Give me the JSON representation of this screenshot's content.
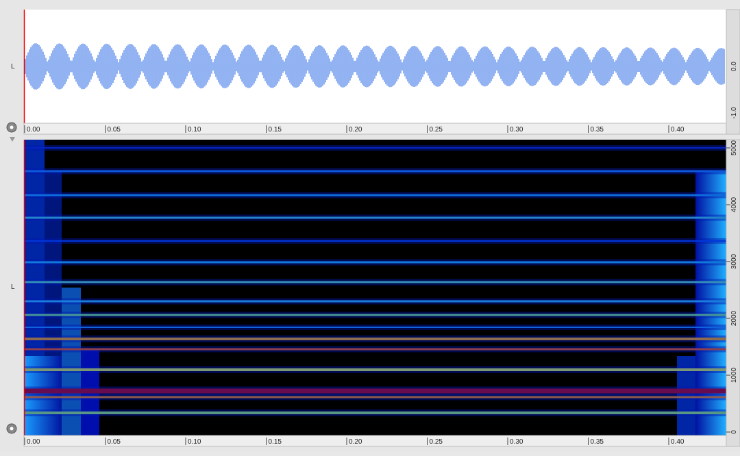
{
  "waveform_panel": {
    "channel_label": "L",
    "time_ticks": [
      "0.00",
      "0.05",
      "0.10",
      "0.15",
      "0.20",
      "0.25",
      "0.30",
      "0.35",
      "0.40"
    ],
    "amplitude_ticks": [
      "0.0",
      "-1.0"
    ]
  },
  "spectrogram_panel": {
    "channel_label": "L",
    "time_ticks": [
      "0.00",
      "0.05",
      "0.10",
      "0.15",
      "0.20",
      "0.25",
      "0.30",
      "0.35",
      "0.40"
    ],
    "frequency_ticks": [
      "5000",
      "4000",
      "3000",
      "2000",
      "1000",
      "0"
    ]
  }
}
